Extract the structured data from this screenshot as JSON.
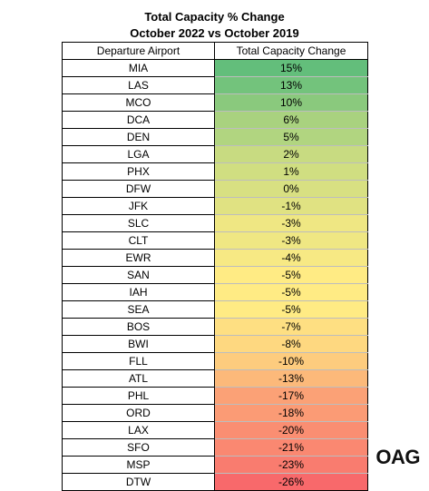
{
  "title": "Total Capacity % Change",
  "subtitle": "October 2022 vs October 2019",
  "logo_text": "OAG",
  "chart_data": {
    "type": "table",
    "columns": [
      "Departure  Airport",
      "Total Capacity Change"
    ],
    "rows": [
      {
        "airport": "MIA",
        "change": 15,
        "label": "15%"
      },
      {
        "airport": "LAS",
        "change": 13,
        "label": "13%"
      },
      {
        "airport": "MCO",
        "change": 10,
        "label": "10%"
      },
      {
        "airport": "DCA",
        "change": 6,
        "label": "6%"
      },
      {
        "airport": "DEN",
        "change": 5,
        "label": "5%"
      },
      {
        "airport": "LGA",
        "change": 2,
        "label": "2%"
      },
      {
        "airport": "PHX",
        "change": 1,
        "label": "1%"
      },
      {
        "airport": "DFW",
        "change": 0,
        "label": "0%"
      },
      {
        "airport": "JFK",
        "change": -1,
        "label": "-1%"
      },
      {
        "airport": "SLC",
        "change": -3,
        "label": "-3%"
      },
      {
        "airport": "CLT",
        "change": -3,
        "label": "-3%"
      },
      {
        "airport": "EWR",
        "change": -4,
        "label": "-4%"
      },
      {
        "airport": "SAN",
        "change": -5,
        "label": "-5%"
      },
      {
        "airport": "IAH",
        "change": -5,
        "label": "-5%"
      },
      {
        "airport": "SEA",
        "change": -5,
        "label": "-5%"
      },
      {
        "airport": "BOS",
        "change": -7,
        "label": "-7%"
      },
      {
        "airport": "BWI",
        "change": -8,
        "label": "-8%"
      },
      {
        "airport": "FLL",
        "change": -10,
        "label": "-10%"
      },
      {
        "airport": "ATL",
        "change": -13,
        "label": "-13%"
      },
      {
        "airport": "PHL",
        "change": -17,
        "label": "-17%"
      },
      {
        "airport": "ORD",
        "change": -18,
        "label": "-18%"
      },
      {
        "airport": "LAX",
        "change": -20,
        "label": "-20%"
      },
      {
        "airport": "SFO",
        "change": -21,
        "label": "-21%"
      },
      {
        "airport": "MSP",
        "change": -23,
        "label": "-23%"
      },
      {
        "airport": "DTW",
        "change": -26,
        "label": "-26%"
      }
    ],
    "color_scale": {
      "min": -26,
      "mid": -5,
      "max": 15,
      "min_color": "#f8696b",
      "mid_color": "#ffeb84",
      "max_color": "#63be7b"
    }
  }
}
